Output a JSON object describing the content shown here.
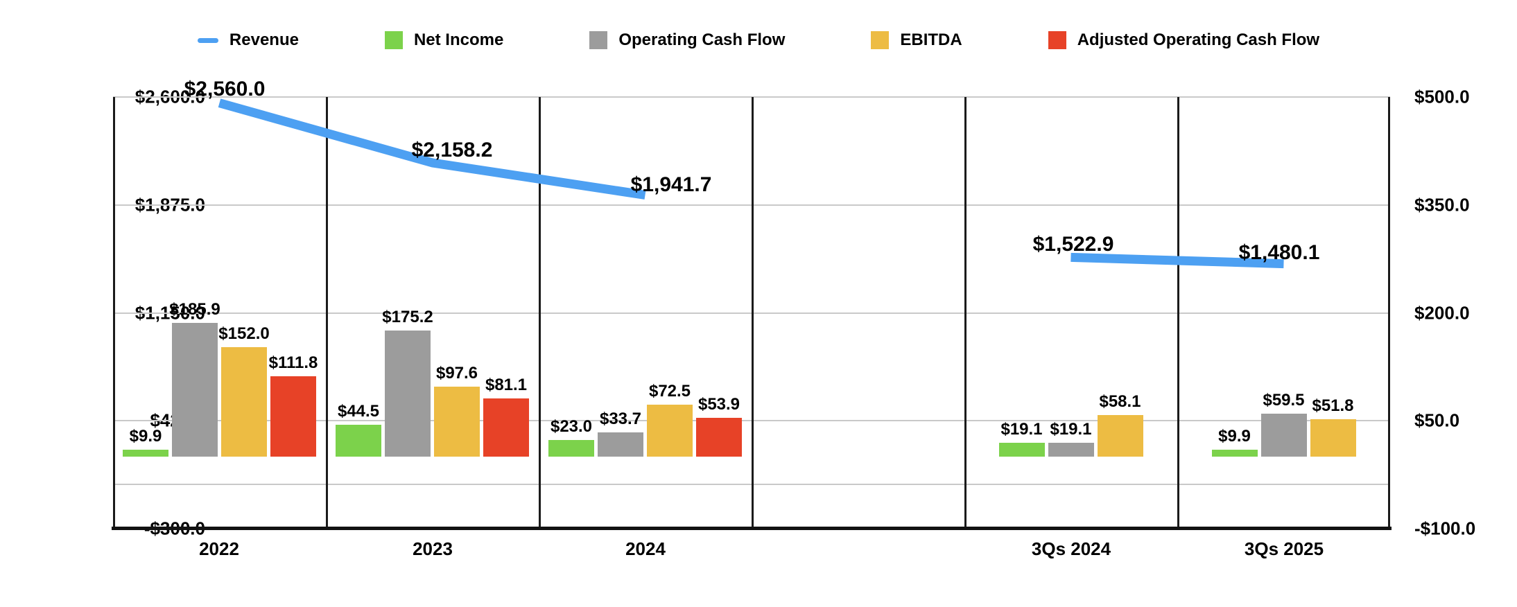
{
  "legend": {
    "items": [
      {
        "label": "Revenue",
        "color": "#4DA0F2",
        "marker": "line"
      },
      {
        "label": "Net Income",
        "color": "#7CD24B",
        "marker": "square"
      },
      {
        "label": "Operating Cash Flow",
        "color": "#9C9C9C",
        "marker": "square"
      },
      {
        "label": "EBITDA",
        "color": "#EDBC43",
        "marker": "square"
      },
      {
        "label": "Adjusted Operating Cash Flow",
        "color": "#E74227",
        "marker": "square"
      }
    ]
  },
  "chart_data": {
    "type": "bar",
    "subtype": "dual-axis grouped bar chart with line overlay",
    "title": "",
    "xlabel": "",
    "ylabel": "",
    "grid": true,
    "legend_position": "top",
    "categories": [
      "2022",
      "2023",
      "2024",
      "",
      "3Qs 2024",
      "3Qs 2025"
    ],
    "series": [
      {
        "name": "Revenue",
        "render": "line",
        "axis": "left",
        "color": "#4DA0F2",
        "values": [
          2560.0,
          2158.2,
          1941.7,
          null,
          1522.9,
          1480.1
        ],
        "labels": [
          "$2,560.0",
          "$2,158.2",
          "$1,941.7",
          "",
          "$1,522.9",
          "$1,480.1"
        ]
      },
      {
        "name": "Net Income",
        "render": "bar",
        "axis": "right",
        "color": "#7CD24B",
        "values": [
          9.9,
          44.5,
          23.0,
          null,
          19.1,
          9.9
        ],
        "labels": [
          "$9.9",
          "$44.5",
          "$23.0",
          "",
          "$19.1",
          "$9.9"
        ]
      },
      {
        "name": "Operating Cash Flow",
        "render": "bar",
        "axis": "right",
        "color": "#9C9C9C",
        "values": [
          185.9,
          175.2,
          33.7,
          null,
          19.1,
          59.5
        ],
        "labels": [
          "$185.9",
          "$175.2",
          "$33.7",
          "",
          "$19.1",
          "$59.5"
        ]
      },
      {
        "name": "EBITDA",
        "render": "bar",
        "axis": "right",
        "color": "#EDBC43",
        "values": [
          152.0,
          97.6,
          72.5,
          null,
          58.1,
          51.8
        ],
        "labels": [
          "$152.0",
          "$97.6",
          "$72.5",
          "",
          "$58.1",
          "$51.8"
        ]
      },
      {
        "name": "Adjusted Operating Cash Flow",
        "render": "bar",
        "axis": "right",
        "color": "#E74227",
        "values": [
          111.8,
          81.1,
          53.9,
          null,
          null,
          null
        ],
        "labels": [
          "$111.8",
          "$81.1",
          "$53.9",
          "",
          "",
          ""
        ]
      }
    ],
    "axes": {
      "left": {
        "min": -300,
        "max": 2600,
        "tick_values": [
          2600,
          1875,
          1150,
          425,
          -300
        ],
        "tick_labels": [
          "$2,600.0",
          "$1,875.0",
          "$1,150.0",
          "$425.0",
          "-$300.0"
        ]
      },
      "right": {
        "min": -100,
        "max": 500,
        "tick_values": [
          500,
          350,
          200,
          50,
          -100
        ],
        "tick_labels": [
          "$500.0",
          "$350.0",
          "$200.0",
          "$50.0",
          "-$100.0"
        ]
      }
    }
  }
}
